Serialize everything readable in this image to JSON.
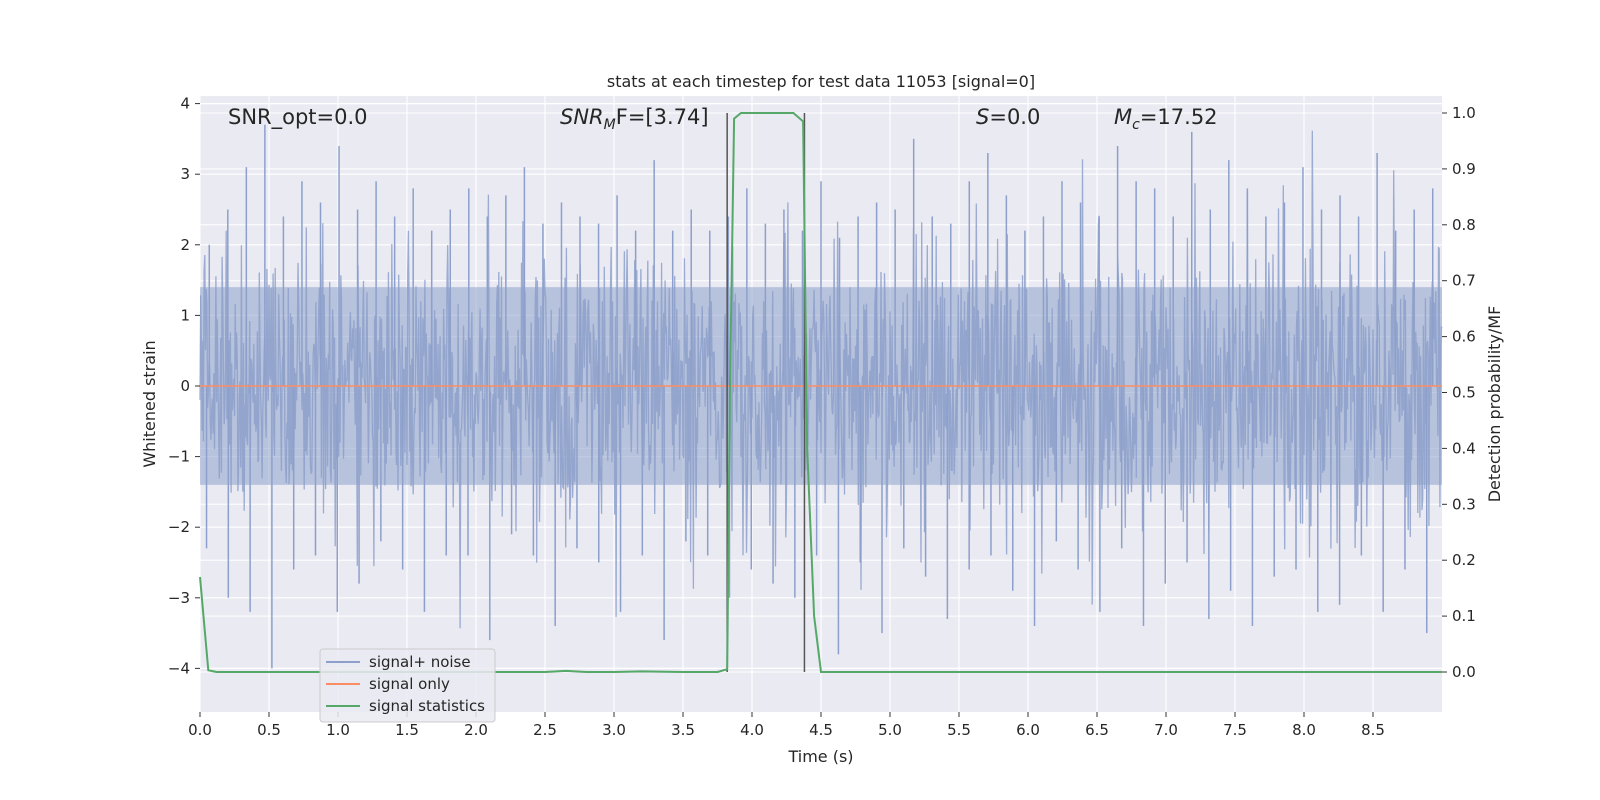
{
  "chart_data": {
    "type": "line",
    "title": "stats at each timestep for test data 11053 [signal=0]",
    "xlabel": "Time (s)",
    "ylabel": "Whitened strain",
    "ylabel_right": "Detection probability/MF",
    "xlim": [
      0,
      9.0
    ],
    "ylim": [
      -4.4,
      4.1
    ],
    "ylim_right": [
      -0.05,
      1.03
    ],
    "x_ticks": [
      "0.0",
      "0.5",
      "1.0",
      "1.5",
      "2.0",
      "2.5",
      "3.0",
      "3.5",
      "4.0",
      "4.5",
      "5.0",
      "5.5",
      "6.0",
      "6.5",
      "7.0",
      "7.5",
      "8.0",
      "8.5"
    ],
    "y_ticks": [
      "4",
      "3",
      "2",
      "1",
      "0",
      "−1",
      "−2",
      "−3",
      "−4"
    ],
    "y_right_ticks": [
      "1.0",
      "0.9",
      "0.8",
      "0.7",
      "0.6",
      "0.5",
      "0.4",
      "0.3",
      "0.2",
      "0.1",
      "0.0"
    ],
    "grid": true,
    "legend_position": "bottom-left",
    "annotations": {
      "snr_opt": "SNR_opt=0.0",
      "snr_mf_base": "SNR",
      "snr_mf_sub": "M",
      "snr_mf_rest": "F=[3.74]",
      "s_italic": "S",
      "s_rest": "=0.0",
      "mc_italic": "M",
      "mc_sub": "c",
      "mc_rest": "=17.52"
    },
    "vertical_markers": [
      3.82,
      4.38
    ],
    "series": [
      {
        "name": "signal+ noise",
        "color": "#8da0cb",
        "axis": "left",
        "description": "whitened noise, amplitude ~±2, spikes to ±3.7",
        "band_quantiles": [
          -1.4,
          1.4
        ],
        "peaks_top": [
          2.0,
          2.5,
          3.1,
          3.7,
          2.4,
          2.9,
          2.6,
          3.4,
          2.5,
          2.9,
          2.4,
          2.8,
          2.2,
          2.5,
          2.8,
          2.4,
          2.7,
          3.1,
          2.3,
          2.6,
          2.4,
          2.3,
          2.7,
          2.2,
          3.2,
          2.2,
          2.5,
          2.2,
          2.4,
          2.8,
          2.3,
          2.5,
          2.2,
          2.9,
          2.1,
          2.4,
          2.6,
          2.5,
          3.5,
          2.4,
          2.3,
          2.9,
          3.3,
          2.7,
          2.2,
          2.4,
          2.9,
          2.6,
          2.4,
          3.4,
          2.9,
          2.8,
          2.4,
          3.6,
          2.5,
          3.2,
          2.8,
          2.4,
          2.6,
          3.1,
          2.5,
          2.7,
          2.4,
          3.3,
          2.2,
          2.5,
          2.8
        ],
        "peaks_bottom": [
          -2.3,
          -3.0,
          -3.2,
          -4.0,
          -2.6,
          -2.4,
          -3.2,
          -2.8,
          -2.2,
          -2.6,
          -3.2,
          -2.4,
          -2.4,
          -3.6,
          -2.1,
          -2.4,
          -3.4,
          -2.3,
          -2.5,
          -3.2,
          -2.4,
          -3.6,
          -2.2,
          -2.4,
          -3.0,
          -2.6,
          -2.8,
          -3.0,
          -2.4,
          -3.8,
          -2.5,
          -3.5,
          -2.3,
          -2.7,
          -3.3,
          -2.6,
          -2.4,
          -2.9,
          -3.4,
          -2.2,
          -2.6,
          -3.2,
          -2.3,
          -3.4,
          -2.8,
          -2.5,
          -3.3,
          -2.9,
          -3.4,
          -2.7,
          -2.6,
          -3.2,
          -3.1,
          -2.4,
          -3.2,
          -2.6,
          -3.5
        ]
      },
      {
        "name": "signal only",
        "color": "#fc8d62",
        "axis": "left",
        "x": [
          0,
          9.0
        ],
        "y": [
          0,
          0
        ]
      },
      {
        "name": "signal statistics",
        "color": "#55a868",
        "axis": "right",
        "x": [
          0.0,
          0.06,
          0.12,
          0.5,
          1.0,
          1.5,
          2.0,
          2.5,
          2.65,
          2.8,
          3.0,
          3.2,
          3.5,
          3.75,
          3.82,
          3.84,
          3.87,
          3.92,
          4.0,
          4.3,
          4.37,
          4.4,
          4.45,
          4.5,
          5.0,
          6.0,
          7.0,
          8.0,
          9.0
        ],
        "y": [
          0.17,
          0.003,
          0.0,
          0.0,
          0.0,
          0.0,
          0.0,
          0.0,
          0.002,
          0.0,
          0.0,
          0.001,
          0.0,
          0.0,
          0.005,
          0.5,
          0.99,
          1.0,
          1.0,
          1.0,
          0.985,
          0.4,
          0.1,
          0.0,
          0.0,
          0.0,
          0.0,
          0.0,
          0.0
        ]
      }
    ]
  }
}
